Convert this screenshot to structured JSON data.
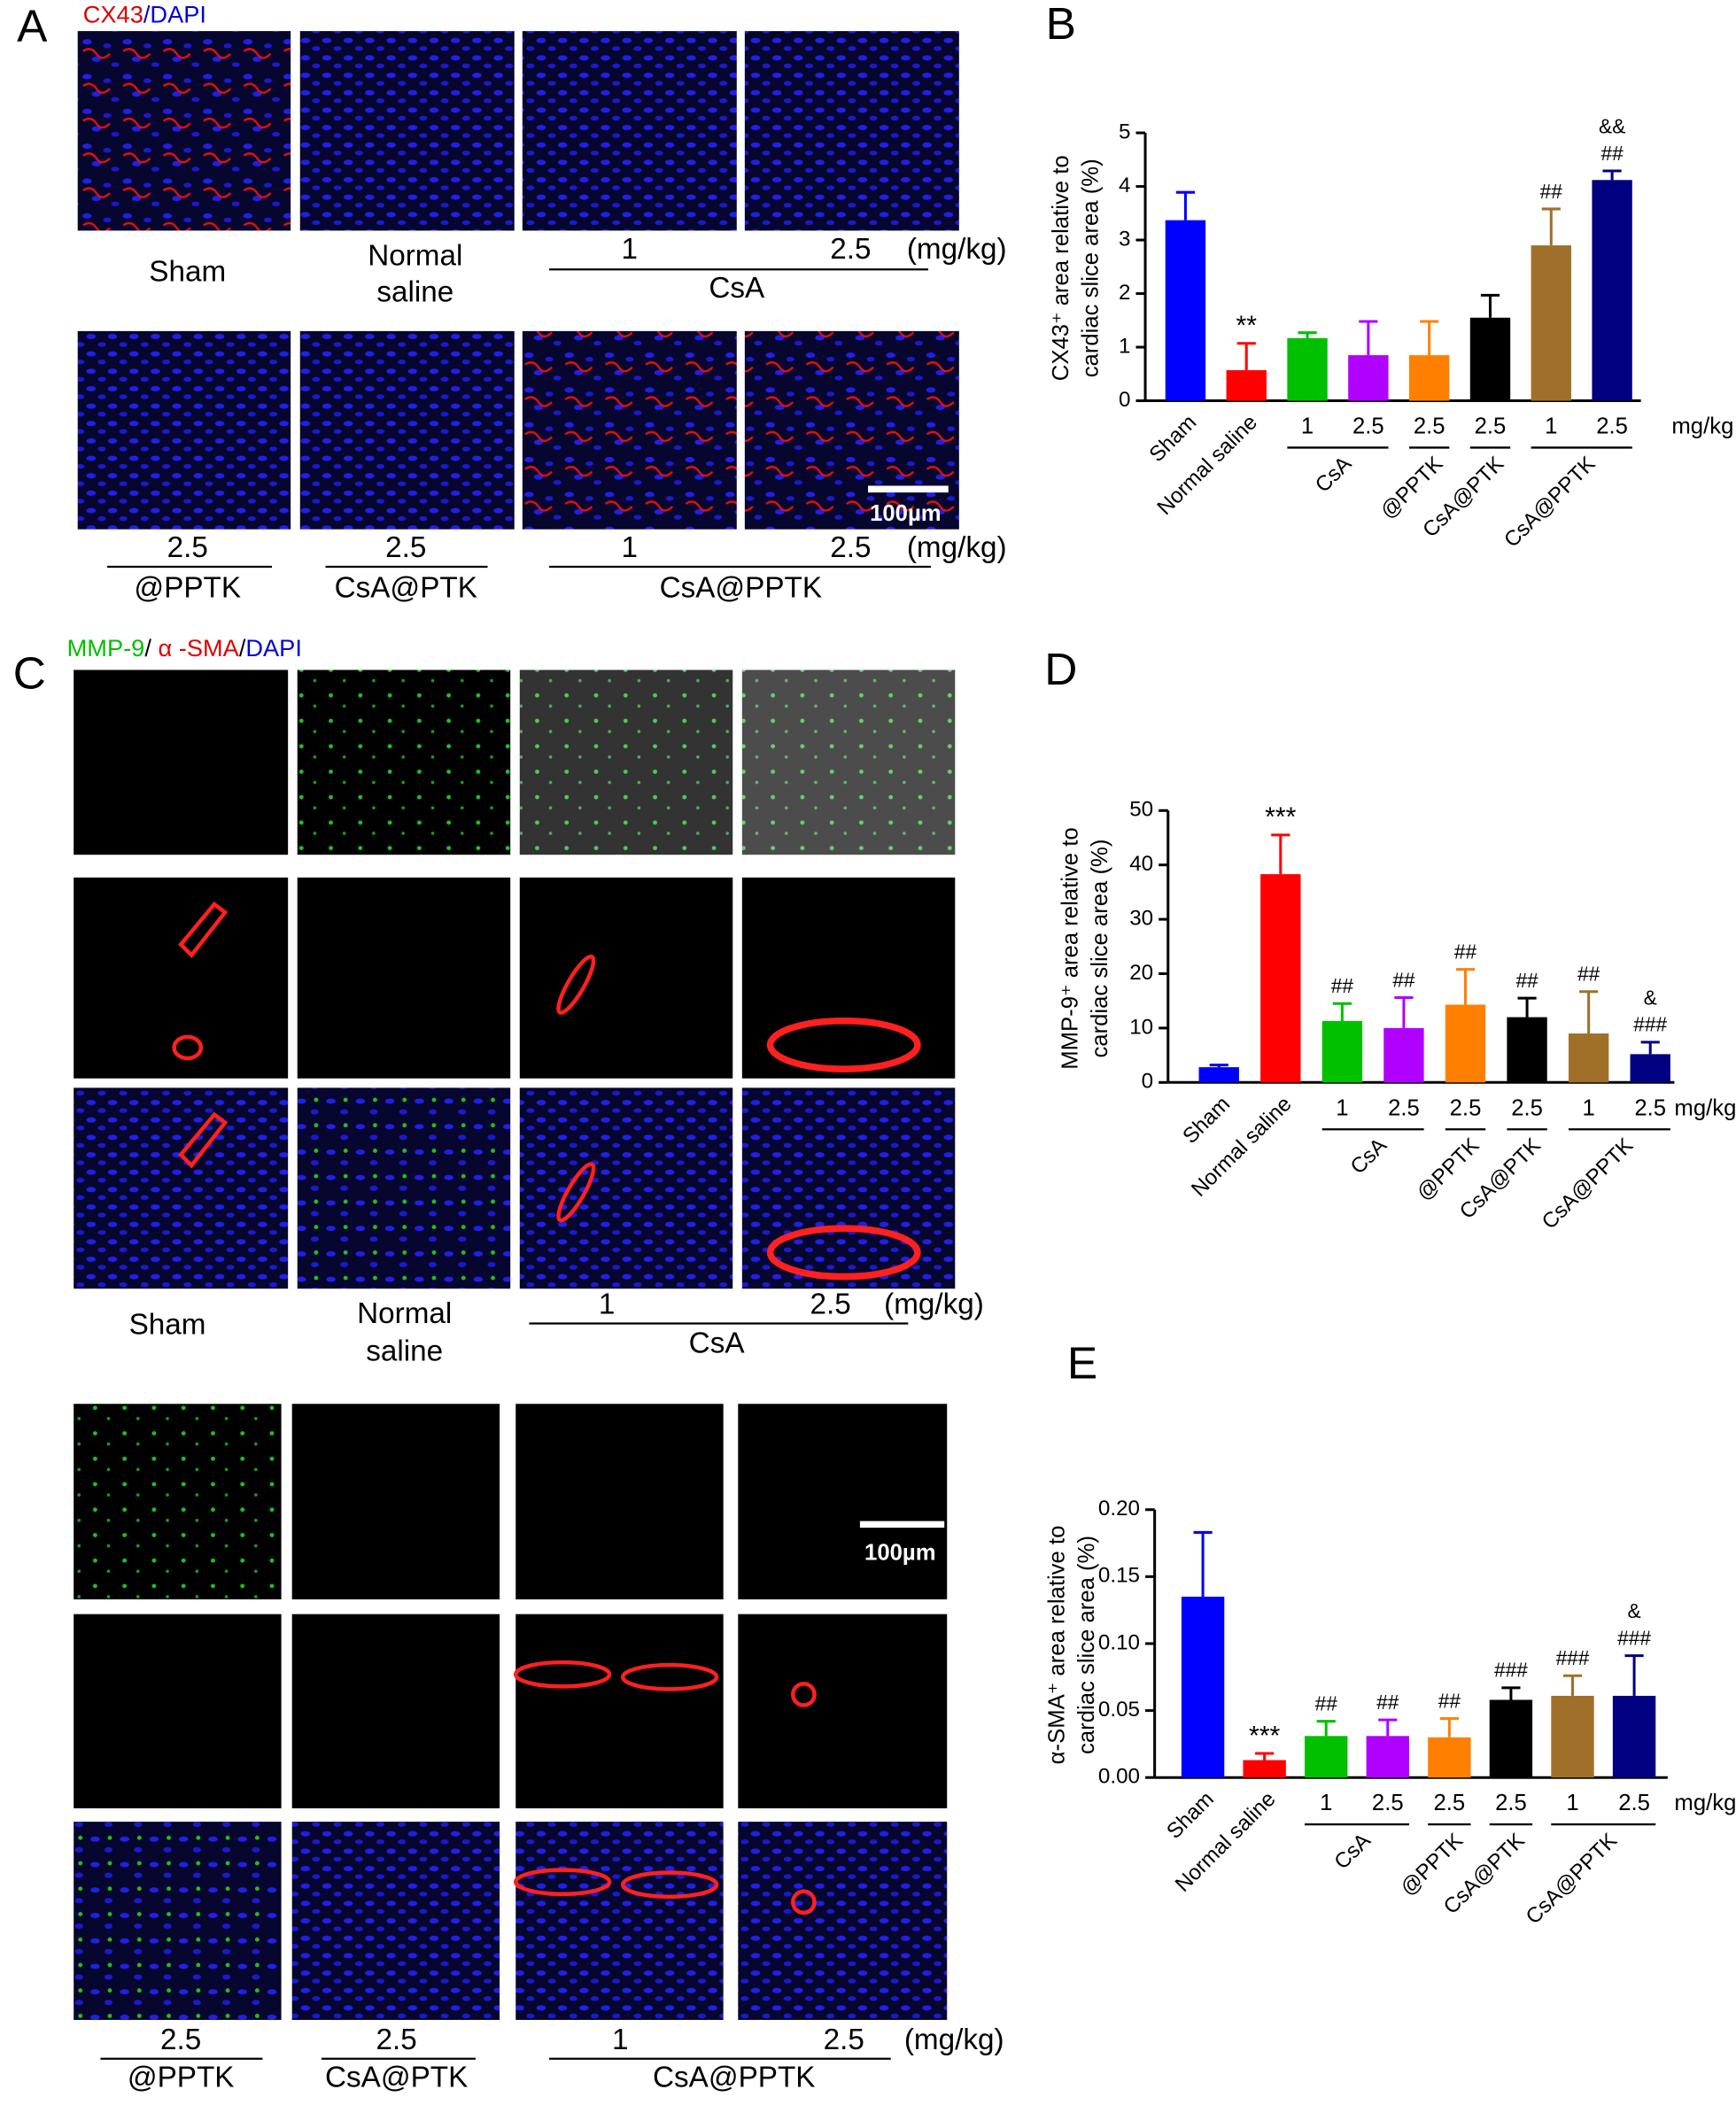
{
  "panel_labels": [
    "A",
    "B",
    "C",
    "D",
    "E"
  ],
  "panel_a": {
    "stain": [
      {
        "text": "CX43",
        "color": "#e00000"
      },
      {
        "text": "/DAPI",
        "color": "#0000e0"
      }
    ],
    "top_labels": {
      "sham": "Sham",
      "saline": [
        "Normal",
        "saline"
      ],
      "doses": [
        "1",
        "2.5"
      ],
      "unit": "(mg/kg)",
      "drug": "CsA"
    },
    "bottom_labels": {
      "items": [
        {
          "dose": "2.5",
          "drug": "@PPTK"
        },
        {
          "dose": "2.5",
          "drug": "CsA@PTK"
        }
      ],
      "doses": [
        "1",
        "2.5"
      ],
      "unit": "(mg/kg)",
      "drug": "CsA@PPTK"
    },
    "scale_bar": "100µm"
  },
  "panel_c": {
    "stain": [
      {
        "text": "MMP-9",
        "color": "#00c000"
      },
      {
        "text": "/ ",
        "color": "#000000"
      },
      {
        "text": "α -SMA",
        "color": "#e00000"
      },
      {
        "text": "/",
        "color": "#000000"
      },
      {
        "text": "DAPI",
        "color": "#0000e0"
      }
    ],
    "top_labels": {
      "sham": "Sham",
      "saline": [
        "Normal",
        "saline"
      ],
      "doses": [
        "1",
        "2.5"
      ],
      "unit": "(mg/kg)",
      "drug": "CsA"
    },
    "bottom_labels": {
      "items": [
        {
          "dose": "2.5",
          "drug": "@PPTK"
        },
        {
          "dose": "2.5",
          "drug": "CsA@PTK"
        }
      ],
      "doses": [
        "1",
        "2.5"
      ],
      "unit": "(mg/kg)",
      "drug": "CsA@PPTK"
    },
    "scale_bar": "100µm"
  },
  "chart_data": [
    {
      "type": "bar",
      "ylabel": [
        "CX43⁺ area relative to",
        "cardiac slice area (%)"
      ],
      "categories": [
        "Sham",
        "Normal saline",
        "1",
        "2.5",
        "2.5",
        "2.5",
        "1",
        "2.5"
      ],
      "groups": [
        "CsA",
        "@PPTK",
        "CsA@PTK",
        "CsA@PPTK"
      ],
      "unit": "mg/kg",
      "values": [
        3.37,
        0.57,
        1.17,
        0.85,
        0.85,
        1.55,
        2.9,
        4.12
      ],
      "errors": [
        0.52,
        0.5,
        0.1,
        0.63,
        0.63,
        0.42,
        0.68,
        0.17
      ],
      "colors": [
        "#0000ff",
        "#ff0000",
        "#00c000",
        "#b000ff",
        "#ff8000",
        "#000000",
        "#a0702a",
        "#000080"
      ],
      "annotations": [
        null,
        [
          "**"
        ],
        null,
        null,
        null,
        null,
        [
          "##"
        ],
        [
          "&&",
          "##"
        ]
      ],
      "ylim": [
        0,
        5
      ],
      "yticks": [
        0,
        1,
        2,
        3,
        4,
        5
      ]
    },
    {
      "type": "bar",
      "ylabel": [
        "MMP-9⁺ area relative to",
        "cardiac slice area (%)"
      ],
      "categories": [
        "Sham",
        "Normal saline",
        "1",
        "2.5",
        "2.5",
        "2.5",
        "1",
        "2.5"
      ],
      "groups": [
        "CsA",
        "@PPTK",
        "CsA@PTK",
        "CsA@PPTK"
      ],
      "unit": "mg/kg",
      "values": [
        2.8,
        38.3,
        11.3,
        10,
        14.3,
        12,
        9,
        5.2
      ],
      "errors": [
        0.4,
        7.2,
        3.2,
        5.6,
        6.5,
        3.5,
        7.7,
        2.2
      ],
      "colors": [
        "#0000ff",
        "#ff0000",
        "#00c000",
        "#b000ff",
        "#ff8000",
        "#000000",
        "#a0702a",
        "#000080"
      ],
      "annotations": [
        null,
        [
          "***"
        ],
        [
          "##"
        ],
        [
          "##"
        ],
        [
          "##"
        ],
        [
          "##"
        ],
        [
          "##"
        ],
        [
          "&",
          "###"
        ]
      ],
      "ylim": [
        0,
        50
      ],
      "yticks": [
        0,
        10,
        20,
        30,
        40,
        50
      ]
    },
    {
      "type": "bar",
      "ylabel": [
        "α-SMA⁺ area relative to",
        "cardiac slice area (%)"
      ],
      "categories": [
        "Sham",
        "Normal saline",
        "1",
        "2.5",
        "2.5",
        "2.5",
        "1",
        "2.5"
      ],
      "groups": [
        "CsA",
        "@PPTK",
        "CsA@PTK",
        "CsA@PPTK"
      ],
      "unit": "mg/kg",
      "values": [
        0.135,
        0.013,
        0.031,
        0.031,
        0.03,
        0.058,
        0.061,
        0.061
      ],
      "errors": [
        0.048,
        0.005,
        0.011,
        0.012,
        0.014,
        0.009,
        0.015,
        0.03
      ],
      "colors": [
        "#0000ff",
        "#ff0000",
        "#00c000",
        "#b000ff",
        "#ff8000",
        "#000000",
        "#a0702a",
        "#000080"
      ],
      "annotations": [
        null,
        [
          "***"
        ],
        [
          "##"
        ],
        [
          "##"
        ],
        [
          "##"
        ],
        [
          "###"
        ],
        [
          "###"
        ],
        [
          "&",
          "###"
        ]
      ],
      "ylim": [
        0,
        0.2
      ],
      "yticks": [
        {
          "value": 0,
          "label": "0.00"
        },
        {
          "value": 0.05,
          "label": "0.05"
        },
        {
          "value": 0.1,
          "label": "0.10"
        },
        {
          "value": 0.15,
          "label": "0.15"
        },
        {
          "value": 0.2,
          "label": "0.20"
        }
      ]
    }
  ]
}
